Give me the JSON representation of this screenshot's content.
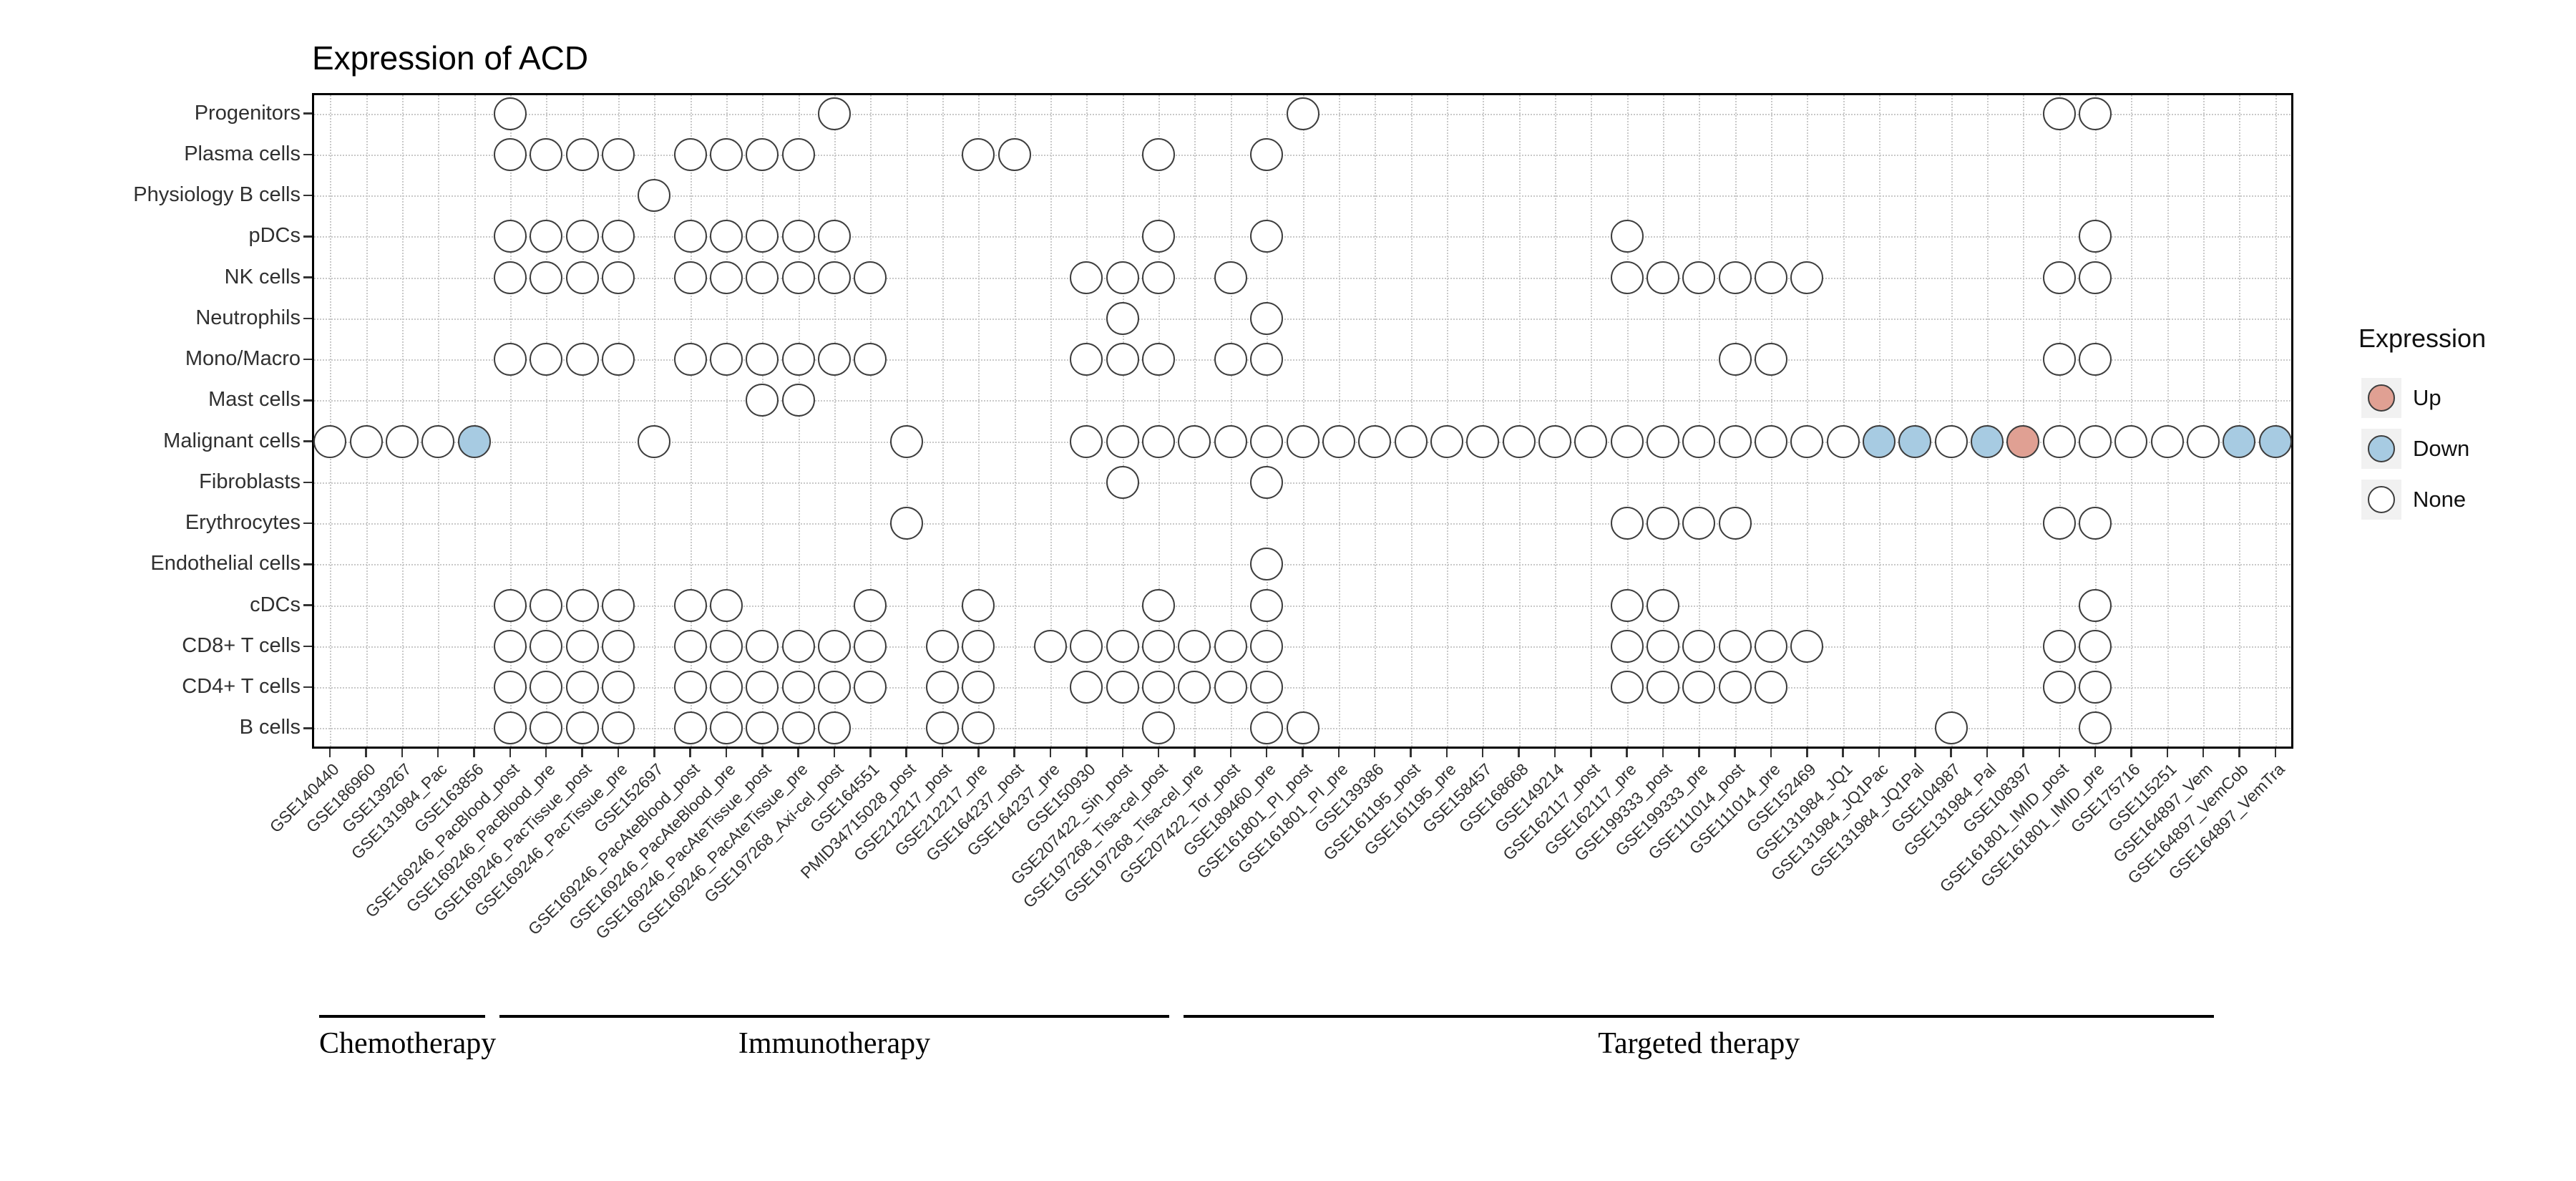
{
  "chart_data": {
    "type": "heatmap",
    "subtype": "dot-matrix",
    "title": "Expression of ACD",
    "rows": [
      "Progenitors",
      "Plasma cells",
      "Physiology B cells",
      "pDCs",
      "NK cells",
      "Neutrophils",
      "Mono/Macro",
      "Mast cells",
      "Malignant cells",
      "Fibroblasts",
      "Erythrocytes",
      "Endothelial cells",
      "cDCs",
      "CD8+ T cells",
      "CD4+ T cells",
      "B cells"
    ],
    "columns": [
      "GSE140440",
      "GSE186960",
      "GSE139267",
      "GSE131984_Pac",
      "GSE163856",
      "GSE169246_PacBlood_post",
      "GSE169246_PacBlood_pre",
      "GSE169246_PacTissue_post",
      "GSE169246_PacTissue_pre",
      "GSE152697",
      "GSE169246_PacAteBlood_post",
      "GSE169246_PacAteBlood_pre",
      "GSE169246_PacAteTissue_post",
      "GSE169246_PacAteTissue_pre",
      "GSE197268_Axi-cel_post",
      "GSE164551",
      "PMID34715028_post",
      "GSE212217_post",
      "GSE212217_pre",
      "GSE164237_post",
      "GSE164237_pre",
      "GSE150930",
      "GSE207422_Sin_post",
      "GSE197268_Tisa-cel_post",
      "GSE197268_Tisa-cel_pre",
      "GSE207422_Tor_post",
      "GSE189460_pre",
      "GSE161801_PI_post",
      "GSE161801_PI_pre",
      "GSE139386",
      "GSE161195_post",
      "GSE161195_pre",
      "GSE158457",
      "GSE168668",
      "GSE149214",
      "GSE162117_post",
      "GSE162117_pre",
      "GSE199333_post",
      "GSE199333_pre",
      "GSE111014_post",
      "GSE111014_pre",
      "GSE152469",
      "GSE131984_JQ1",
      "GSE131984_JQ1Pac",
      "GSE131984_JQ1Pal",
      "GSE104987",
      "GSE131984_Pal",
      "GSE108397",
      "GSE161801_IMID_post",
      "GSE161801_IMID_pre",
      "GSE175716",
      "GSE115251",
      "GSE164897_Vem",
      "GSE164897_VemCob",
      "GSE164897_VemTra"
    ],
    "dots": [
      {
        "row": "Progenitors",
        "none": [
          6,
          15,
          28,
          49,
          50
        ],
        "down": [],
        "up": []
      },
      {
        "row": "Plasma cells",
        "none": [
          6,
          7,
          8,
          9,
          11,
          12,
          13,
          14,
          19,
          20,
          24,
          27
        ],
        "down": [],
        "up": []
      },
      {
        "row": "Physiology B cells",
        "none": [
          10
        ],
        "down": [],
        "up": []
      },
      {
        "row": "pDCs",
        "none": [
          6,
          7,
          8,
          9,
          11,
          12,
          13,
          14,
          15,
          24,
          27,
          37,
          50
        ],
        "down": [],
        "up": []
      },
      {
        "row": "NK cells",
        "none": [
          6,
          7,
          8,
          9,
          11,
          12,
          13,
          14,
          15,
          16,
          22,
          23,
          24,
          26,
          37,
          38,
          39,
          40,
          41,
          42,
          49,
          50
        ],
        "down": [],
        "up": []
      },
      {
        "row": "Neutrophils",
        "none": [
          23,
          27
        ],
        "down": [],
        "up": []
      },
      {
        "row": "Mono/Macro",
        "none": [
          6,
          7,
          8,
          9,
          11,
          12,
          13,
          14,
          15,
          16,
          22,
          23,
          24,
          26,
          27,
          40,
          41,
          49,
          50
        ],
        "down": [],
        "up": []
      },
      {
        "row": "Mast cells",
        "none": [
          13,
          14
        ],
        "down": [],
        "up": []
      },
      {
        "row": "Malignant cells",
        "none": [
          1,
          2,
          3,
          4,
          10,
          17,
          22,
          23,
          24,
          25,
          26,
          27,
          28,
          29,
          30,
          31,
          32,
          33,
          34,
          35,
          36,
          37,
          38,
          39,
          40,
          41,
          42,
          43,
          46,
          49,
          50,
          51,
          52,
          53
        ],
        "down": [
          5,
          44,
          45,
          47,
          54,
          55
        ],
        "up": [
          48
        ]
      },
      {
        "row": "Fibroblasts",
        "none": [
          23,
          27
        ],
        "down": [],
        "up": []
      },
      {
        "row": "Erythrocytes",
        "none": [
          17,
          37,
          38,
          39,
          40,
          49,
          50
        ],
        "down": [],
        "up": []
      },
      {
        "row": "Endothelial cells",
        "none": [
          27
        ],
        "down": [],
        "up": []
      },
      {
        "row": "cDCs",
        "none": [
          6,
          7,
          8,
          9,
          11,
          12,
          16,
          19,
          24,
          27,
          37,
          38,
          50
        ],
        "down": [],
        "up": []
      },
      {
        "row": "CD8+ T cells",
        "none": [
          6,
          7,
          8,
          9,
          11,
          12,
          13,
          14,
          15,
          16,
          18,
          19,
          21,
          22,
          23,
          24,
          25,
          26,
          27,
          37,
          38,
          39,
          40,
          41,
          42,
          49,
          50
        ],
        "down": [],
        "up": []
      },
      {
        "row": "CD4+ T cells",
        "none": [
          6,
          7,
          8,
          9,
          11,
          12,
          13,
          14,
          15,
          16,
          18,
          19,
          22,
          23,
          24,
          25,
          26,
          27,
          37,
          38,
          39,
          40,
          41,
          49,
          50
        ],
        "down": [],
        "up": []
      },
      {
        "row": "B cells",
        "none": [
          6,
          7,
          8,
          9,
          11,
          12,
          13,
          14,
          15,
          18,
          19,
          24,
          27,
          28,
          46,
          50
        ],
        "down": [],
        "up": []
      }
    ],
    "groups": [
      {
        "label": "Chemotherapy",
        "start": 1,
        "end": 5
      },
      {
        "label": "Immunotherapy",
        "start": 6,
        "end": 24
      },
      {
        "label": "Targeted therapy",
        "start": 25,
        "end": 53
      }
    ],
    "legend": {
      "title": "Expression",
      "items": [
        {
          "label": "Up",
          "color": "#e0a093"
        },
        {
          "label": "Down",
          "color": "#a7cbe2"
        },
        {
          "label": "None",
          "color": "#ffffff"
        }
      ]
    },
    "style": {
      "dot_stroke": "#3d3d3d",
      "grid_color": "#c9c9c9",
      "panel_border": "#000000"
    },
    "layout_hints": {
      "x_tick_rotation_deg": 45,
      "legend_position": "right",
      "grid": "dotted"
    }
  }
}
